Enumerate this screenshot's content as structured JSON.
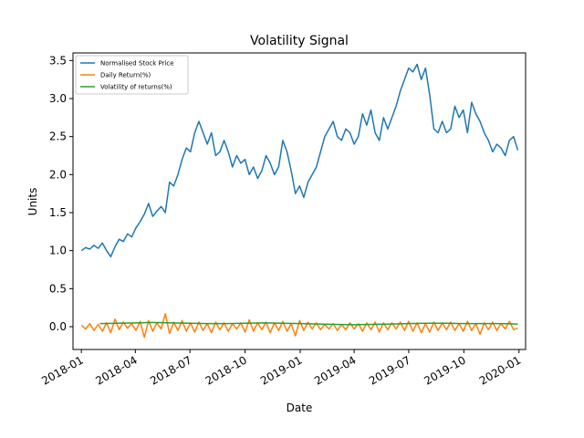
{
  "chart_data": {
    "type": "line",
    "title": "Volatility Signal",
    "xlabel": "Date",
    "ylabel": "Units",
    "xlim": [
      "2017-12-18",
      "2020-01-12"
    ],
    "ylim": [
      -0.3,
      3.6
    ],
    "yticks": [
      0.0,
      0.5,
      1.0,
      1.5,
      2.0,
      2.5,
      3.0,
      3.5
    ],
    "ytick_labels": [
      "0.0",
      "0.5",
      "1.0",
      "1.5",
      "2.0",
      "2.5",
      "3.0",
      "3.5"
    ],
    "xticks": [
      "2018-01-01",
      "2018-04-01",
      "2018-07-01",
      "2018-10-01",
      "2019-01-01",
      "2019-04-01",
      "2019-07-01",
      "2019-10-01",
      "2020-01-01"
    ],
    "xtick_labels": [
      "2018-01",
      "2018-04",
      "2018-07",
      "2018-10",
      "2019-01",
      "2019-04",
      "2019-07",
      "2019-10",
      "2020-01"
    ],
    "grid": false,
    "legend_position": "top-left",
    "series": [
      {
        "name": "Normalised Stock Price",
        "color": "#1f77b4",
        "points": [
          [
            "2018-01-01",
            1.0
          ],
          [
            "2018-01-08",
            1.04
          ],
          [
            "2018-01-15",
            1.02
          ],
          [
            "2018-01-22",
            1.07
          ],
          [
            "2018-01-29",
            1.03
          ],
          [
            "2018-02-05",
            1.1
          ],
          [
            "2018-02-12",
            1.0
          ],
          [
            "2018-02-19",
            0.92
          ],
          [
            "2018-02-26",
            1.05
          ],
          [
            "2018-03-05",
            1.15
          ],
          [
            "2018-03-12",
            1.12
          ],
          [
            "2018-03-19",
            1.22
          ],
          [
            "2018-03-26",
            1.18
          ],
          [
            "2018-04-02",
            1.3
          ],
          [
            "2018-04-09",
            1.38
          ],
          [
            "2018-04-16",
            1.48
          ],
          [
            "2018-04-23",
            1.62
          ],
          [
            "2018-04-30",
            1.45
          ],
          [
            "2018-05-07",
            1.52
          ],
          [
            "2018-05-14",
            1.58
          ],
          [
            "2018-05-21",
            1.5
          ],
          [
            "2018-05-28",
            1.9
          ],
          [
            "2018-06-04",
            1.85
          ],
          [
            "2018-06-11",
            2.0
          ],
          [
            "2018-06-18",
            2.2
          ],
          [
            "2018-06-25",
            2.35
          ],
          [
            "2018-07-02",
            2.3
          ],
          [
            "2018-07-09",
            2.55
          ],
          [
            "2018-07-16",
            2.7
          ],
          [
            "2018-07-23",
            2.55
          ],
          [
            "2018-07-30",
            2.4
          ],
          [
            "2018-08-06",
            2.55
          ],
          [
            "2018-08-13",
            2.25
          ],
          [
            "2018-08-20",
            2.3
          ],
          [
            "2018-08-27",
            2.45
          ],
          [
            "2018-09-03",
            2.3
          ],
          [
            "2018-09-10",
            2.1
          ],
          [
            "2018-09-17",
            2.25
          ],
          [
            "2018-09-24",
            2.15
          ],
          [
            "2018-10-01",
            2.2
          ],
          [
            "2018-10-08",
            2.0
          ],
          [
            "2018-10-15",
            2.1
          ],
          [
            "2018-10-22",
            1.95
          ],
          [
            "2018-10-29",
            2.05
          ],
          [
            "2018-11-05",
            2.25
          ],
          [
            "2018-11-12",
            2.15
          ],
          [
            "2018-11-19",
            2.0
          ],
          [
            "2018-11-26",
            2.1
          ],
          [
            "2018-12-03",
            2.45
          ],
          [
            "2018-12-10",
            2.3
          ],
          [
            "2018-12-17",
            2.05
          ],
          [
            "2018-12-24",
            1.75
          ],
          [
            "2018-12-31",
            1.85
          ],
          [
            "2019-01-07",
            1.7
          ],
          [
            "2019-01-14",
            1.9
          ],
          [
            "2019-01-21",
            2.0
          ],
          [
            "2019-01-28",
            2.1
          ],
          [
            "2019-02-04",
            2.3
          ],
          [
            "2019-02-11",
            2.5
          ],
          [
            "2019-02-18",
            2.6
          ],
          [
            "2019-02-25",
            2.7
          ],
          [
            "2019-03-04",
            2.5
          ],
          [
            "2019-03-11",
            2.45
          ],
          [
            "2019-03-18",
            2.6
          ],
          [
            "2019-03-25",
            2.55
          ],
          [
            "2019-04-01",
            2.4
          ],
          [
            "2019-04-08",
            2.5
          ],
          [
            "2019-04-15",
            2.8
          ],
          [
            "2019-04-22",
            2.65
          ],
          [
            "2019-04-29",
            2.85
          ],
          [
            "2019-05-06",
            2.55
          ],
          [
            "2019-05-13",
            2.45
          ],
          [
            "2019-05-20",
            2.75
          ],
          [
            "2019-05-27",
            2.6
          ],
          [
            "2019-06-03",
            2.75
          ],
          [
            "2019-06-10",
            2.9
          ],
          [
            "2019-06-17",
            3.1
          ],
          [
            "2019-06-24",
            3.25
          ],
          [
            "2019-07-01",
            3.4
          ],
          [
            "2019-07-08",
            3.35
          ],
          [
            "2019-07-15",
            3.45
          ],
          [
            "2019-07-22",
            3.25
          ],
          [
            "2019-07-29",
            3.4
          ],
          [
            "2019-08-05",
            3.05
          ],
          [
            "2019-08-12",
            2.6
          ],
          [
            "2019-08-19",
            2.55
          ],
          [
            "2019-08-26",
            2.7
          ],
          [
            "2019-09-02",
            2.55
          ],
          [
            "2019-09-09",
            2.6
          ],
          [
            "2019-09-16",
            2.9
          ],
          [
            "2019-09-23",
            2.75
          ],
          [
            "2019-09-30",
            2.85
          ],
          [
            "2019-10-07",
            2.55
          ],
          [
            "2019-10-14",
            2.95
          ],
          [
            "2019-10-21",
            2.8
          ],
          [
            "2019-10-28",
            2.7
          ],
          [
            "2019-11-04",
            2.55
          ],
          [
            "2019-11-11",
            2.45
          ],
          [
            "2019-11-18",
            2.3
          ],
          [
            "2019-11-25",
            2.4
          ],
          [
            "2019-12-02",
            2.35
          ],
          [
            "2019-12-09",
            2.25
          ],
          [
            "2019-12-16",
            2.45
          ],
          [
            "2019-12-23",
            2.5
          ],
          [
            "2019-12-30",
            2.32
          ]
        ]
      },
      {
        "name": "Daily Return(%)",
        "color": "#ff7f0e",
        "points": [
          [
            "2018-01-01",
            0.02
          ],
          [
            "2018-01-08",
            -0.03
          ],
          [
            "2018-01-15",
            0.04
          ],
          [
            "2018-01-22",
            -0.05
          ],
          [
            "2018-01-29",
            0.03
          ],
          [
            "2018-02-05",
            -0.06
          ],
          [
            "2018-02-12",
            0.05
          ],
          [
            "2018-02-19",
            -0.08
          ],
          [
            "2018-02-26",
            0.1
          ],
          [
            "2018-03-05",
            -0.04
          ],
          [
            "2018-03-12",
            0.06
          ],
          [
            "2018-03-19",
            -0.02
          ],
          [
            "2018-03-26",
            0.04
          ],
          [
            "2018-04-02",
            -0.05
          ],
          [
            "2018-04-09",
            0.07
          ],
          [
            "2018-04-16",
            -0.14
          ],
          [
            "2018-04-23",
            0.08
          ],
          [
            "2018-04-30",
            -0.06
          ],
          [
            "2018-05-07",
            0.05
          ],
          [
            "2018-05-14",
            -0.03
          ],
          [
            "2018-05-21",
            0.17
          ],
          [
            "2018-05-28",
            -0.09
          ],
          [
            "2018-06-04",
            0.06
          ],
          [
            "2018-06-11",
            -0.05
          ],
          [
            "2018-06-18",
            0.08
          ],
          [
            "2018-06-25",
            -0.06
          ],
          [
            "2018-07-02",
            0.05
          ],
          [
            "2018-07-09",
            -0.07
          ],
          [
            "2018-07-16",
            0.06
          ],
          [
            "2018-07-23",
            -0.05
          ],
          [
            "2018-07-30",
            0.04
          ],
          [
            "2018-08-06",
            -0.08
          ],
          [
            "2018-08-13",
            0.06
          ],
          [
            "2018-08-20",
            -0.04
          ],
          [
            "2018-08-27",
            0.05
          ],
          [
            "2018-09-03",
            -0.06
          ],
          [
            "2018-09-10",
            0.04
          ],
          [
            "2018-09-17",
            -0.03
          ],
          [
            "2018-09-24",
            0.05
          ],
          [
            "2018-10-01",
            -0.07
          ],
          [
            "2018-10-08",
            0.09
          ],
          [
            "2018-10-15",
            -0.06
          ],
          [
            "2018-10-22",
            0.05
          ],
          [
            "2018-10-29",
            -0.04
          ],
          [
            "2018-11-05",
            0.06
          ],
          [
            "2018-11-12",
            -0.08
          ],
          [
            "2018-11-19",
            0.05
          ],
          [
            "2018-11-26",
            -0.05
          ],
          [
            "2018-12-03",
            0.07
          ],
          [
            "2018-12-10",
            -0.06
          ],
          [
            "2018-12-17",
            0.04
          ],
          [
            "2018-12-24",
            -0.12
          ],
          [
            "2018-12-31",
            0.08
          ],
          [
            "2019-01-07",
            -0.05
          ],
          [
            "2019-01-14",
            0.06
          ],
          [
            "2019-01-21",
            -0.03
          ],
          [
            "2019-01-28",
            0.05
          ],
          [
            "2019-02-04",
            -0.04
          ],
          [
            "2019-02-11",
            0.03
          ],
          [
            "2019-02-18",
            -0.03
          ],
          [
            "2019-02-25",
            0.04
          ],
          [
            "2019-03-04",
            -0.05
          ],
          [
            "2019-03-11",
            0.03
          ],
          [
            "2019-03-18",
            -0.04
          ],
          [
            "2019-03-25",
            0.05
          ],
          [
            "2019-04-01",
            -0.03
          ],
          [
            "2019-04-08",
            0.04
          ],
          [
            "2019-04-15",
            -0.06
          ],
          [
            "2019-04-22",
            0.05
          ],
          [
            "2019-04-29",
            -0.04
          ],
          [
            "2019-05-06",
            0.06
          ],
          [
            "2019-05-13",
            -0.07
          ],
          [
            "2019-05-20",
            0.05
          ],
          [
            "2019-05-27",
            -0.04
          ],
          [
            "2019-06-03",
            0.05
          ],
          [
            "2019-06-10",
            -0.03
          ],
          [
            "2019-06-17",
            0.06
          ],
          [
            "2019-06-24",
            -0.05
          ],
          [
            "2019-07-01",
            0.07
          ],
          [
            "2019-07-08",
            -0.06
          ],
          [
            "2019-07-15",
            0.05
          ],
          [
            "2019-07-22",
            -0.08
          ],
          [
            "2019-07-29",
            0.04
          ],
          [
            "2019-08-05",
            -0.07
          ],
          [
            "2019-08-12",
            0.06
          ],
          [
            "2019-08-19",
            -0.05
          ],
          [
            "2019-08-26",
            0.05
          ],
          [
            "2019-09-02",
            -0.04
          ],
          [
            "2019-09-09",
            0.06
          ],
          [
            "2019-09-16",
            -0.05
          ],
          [
            "2019-09-23",
            0.04
          ],
          [
            "2019-09-30",
            -0.06
          ],
          [
            "2019-10-07",
            0.07
          ],
          [
            "2019-10-14",
            -0.05
          ],
          [
            "2019-10-21",
            0.04
          ],
          [
            "2019-10-28",
            -0.1
          ],
          [
            "2019-11-04",
            0.05
          ],
          [
            "2019-11-11",
            -0.04
          ],
          [
            "2019-11-18",
            0.06
          ],
          [
            "2019-11-25",
            -0.05
          ],
          [
            "2019-12-02",
            0.04
          ],
          [
            "2019-12-09",
            -0.03
          ],
          [
            "2019-12-16",
            0.07
          ],
          [
            "2019-12-23",
            -0.04
          ],
          [
            "2019-12-30",
            -0.02
          ]
        ]
      },
      {
        "name": "Volatility of returns(%)",
        "color": "#2ca02c",
        "points": [
          [
            "2018-02-01",
            0.04
          ],
          [
            "2018-03-01",
            0.045
          ],
          [
            "2018-04-01",
            0.05
          ],
          [
            "2018-05-01",
            0.055
          ],
          [
            "2018-06-01",
            0.05
          ],
          [
            "2018-07-01",
            0.045
          ],
          [
            "2018-08-01",
            0.04
          ],
          [
            "2018-09-01",
            0.04
          ],
          [
            "2018-10-01",
            0.045
          ],
          [
            "2018-11-01",
            0.05
          ],
          [
            "2018-12-01",
            0.045
          ],
          [
            "2019-01-01",
            0.04
          ],
          [
            "2019-02-01",
            0.035
          ],
          [
            "2019-03-01",
            0.03
          ],
          [
            "2019-04-01",
            0.025
          ],
          [
            "2019-05-01",
            0.03
          ],
          [
            "2019-06-01",
            0.035
          ],
          [
            "2019-07-01",
            0.04
          ],
          [
            "2019-08-01",
            0.045
          ],
          [
            "2019-09-01",
            0.045
          ],
          [
            "2019-10-01",
            0.04
          ],
          [
            "2019-11-01",
            0.04
          ],
          [
            "2019-12-01",
            0.04
          ],
          [
            "2019-12-30",
            0.035
          ]
        ]
      }
    ]
  }
}
